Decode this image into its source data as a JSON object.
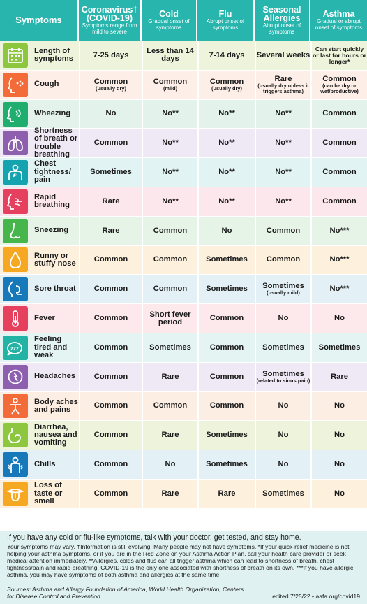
{
  "header": {
    "symptoms_label": "Symptoms",
    "columns": [
      {
        "title": "Coronavirus† (COVID-19)",
        "subtitle": "Symptoms range from mild to severe"
      },
      {
        "title": "Cold",
        "subtitle": "Gradual onset of symptoms"
      },
      {
        "title": "Flu",
        "subtitle": "Abrupt onset of symptoms"
      },
      {
        "title": "Seasonal Allergies",
        "subtitle": "Abrupt onset of symptoms"
      },
      {
        "title": "Asthma",
        "subtitle": "Gradual or abrupt onset of symptoms"
      }
    ]
  },
  "colors": {
    "header": "#27b5ad",
    "row_bgs": [
      "#eef4dc",
      "#fdeee8",
      "#e3f3ec",
      "#efe9f5",
      "#e2f3f4",
      "#fce7ec",
      "#e6f3e7",
      "#fdf0dd",
      "#e3f0f6",
      "#fde9eb",
      "#e4f4f2",
      "#efe9f5",
      "#fdeee3",
      "#eef4dc",
      "#e3f0f6",
      "#fdf0dd"
    ],
    "icon_bgs": [
      "#8dc63f",
      "#f26b38",
      "#1fae6e",
      "#8d5fae",
      "#16a3b0",
      "#e6405f",
      "#46b54c",
      "#f7a823",
      "#1779ba",
      "#e6405f",
      "#22b3a5",
      "#8d5fae",
      "#f26b38",
      "#8dc63f",
      "#1779ba",
      "#f7a823"
    ]
  },
  "chart_data": {
    "type": "table",
    "columns": [
      "Coronavirus† (COVID-19)",
      "Cold",
      "Flu",
      "Seasonal Allergies",
      "Asthma"
    ],
    "rows": [
      {
        "icon": "calendar-icon",
        "symptom": "Length of symptoms",
        "values": [
          {
            "main": "7-25 days"
          },
          {
            "main": "Less than 14 days"
          },
          {
            "main": "7-14 days"
          },
          {
            "main": "Several weeks"
          },
          {
            "main": "Can start quickly or last for hours or longer*",
            "small": true
          }
        ]
      },
      {
        "icon": "cough-icon",
        "symptom": "Cough",
        "values": [
          {
            "main": "Common",
            "note": "(usually dry)"
          },
          {
            "main": "Common",
            "note": "(mild)"
          },
          {
            "main": "Common",
            "note": "(usually dry)"
          },
          {
            "main": "Rare",
            "note": "(usually dry unless it triggers asthma)"
          },
          {
            "main": "Common",
            "note": "(can be dry or wet/productive)"
          }
        ]
      },
      {
        "icon": "wheezing-icon",
        "symptom": "Wheezing",
        "values": [
          {
            "main": "No"
          },
          {
            "main": "No**"
          },
          {
            "main": "No**"
          },
          {
            "main": "No**"
          },
          {
            "main": "Common"
          }
        ]
      },
      {
        "icon": "lungs-icon",
        "symptom": "Shortness of breath or trouble breathing",
        "values": [
          {
            "main": "Common"
          },
          {
            "main": "No**"
          },
          {
            "main": "No**"
          },
          {
            "main": "No**"
          },
          {
            "main": "Common"
          }
        ]
      },
      {
        "icon": "chest-icon",
        "symptom": "Chest tightness/ pain",
        "values": [
          {
            "main": "Sometimes"
          },
          {
            "main": "No**"
          },
          {
            "main": "No**"
          },
          {
            "main": "No**"
          },
          {
            "main": "Common"
          }
        ]
      },
      {
        "icon": "rapid-breathing-icon",
        "symptom": "Rapid breathing",
        "values": [
          {
            "main": "Rare"
          },
          {
            "main": "No**"
          },
          {
            "main": "No**"
          },
          {
            "main": "No**"
          },
          {
            "main": "Common"
          }
        ]
      },
      {
        "icon": "nose-icon",
        "symptom": "Sneezing",
        "values": [
          {
            "main": "Rare"
          },
          {
            "main": "Common"
          },
          {
            "main": "No"
          },
          {
            "main": "Common"
          },
          {
            "main": "No***"
          }
        ]
      },
      {
        "icon": "droplet-icon",
        "symptom": "Runny or stuffy nose",
        "values": [
          {
            "main": "Common"
          },
          {
            "main": "Common"
          },
          {
            "main": "Sometimes"
          },
          {
            "main": "Common"
          },
          {
            "main": "No***"
          }
        ]
      },
      {
        "icon": "sore-throat-icon",
        "symptom": "Sore throat",
        "values": [
          {
            "main": "Common"
          },
          {
            "main": "Common"
          },
          {
            "main": "Sometimes"
          },
          {
            "main": "Sometimes",
            "note": "(usually mild)"
          },
          {
            "main": "No***"
          }
        ]
      },
      {
        "icon": "thermometer-icon",
        "symptom": "Fever",
        "values": [
          {
            "main": "Common"
          },
          {
            "main": "Short fever period"
          },
          {
            "main": "Common"
          },
          {
            "main": "No"
          },
          {
            "main": "No"
          }
        ]
      },
      {
        "icon": "tired-icon",
        "symptom": "Feeling tired and weak",
        "values": [
          {
            "main": "Common"
          },
          {
            "main": "Sometimes"
          },
          {
            "main": "Common"
          },
          {
            "main": "Sometimes"
          },
          {
            "main": "Sometimes"
          }
        ]
      },
      {
        "icon": "headache-icon",
        "symptom": "Headaches",
        "values": [
          {
            "main": "Common"
          },
          {
            "main": "Rare"
          },
          {
            "main": "Common"
          },
          {
            "main": "Sometimes",
            "note": "(related to sinus pain)"
          },
          {
            "main": "Rare"
          }
        ]
      },
      {
        "icon": "body-aches-icon",
        "symptom": "Body aches and pains",
        "values": [
          {
            "main": "Common"
          },
          {
            "main": "Common"
          },
          {
            "main": "Common"
          },
          {
            "main": "No"
          },
          {
            "main": "No"
          }
        ]
      },
      {
        "icon": "stomach-icon",
        "symptom": "Diarrhea, nausea and vomiting",
        "values": [
          {
            "main": "Common"
          },
          {
            "main": "Rare"
          },
          {
            "main": "Sometimes"
          },
          {
            "main": "No"
          },
          {
            "main": "No"
          }
        ]
      },
      {
        "icon": "chills-icon",
        "symptom": "Chills",
        "values": [
          {
            "main": "Common"
          },
          {
            "main": "No"
          },
          {
            "main": "Sometimes"
          },
          {
            "main": "No"
          },
          {
            "main": "No"
          }
        ]
      },
      {
        "icon": "tongue-icon",
        "symptom": "Loss of taste or smell",
        "values": [
          {
            "main": "Common"
          },
          {
            "main": "Rare"
          },
          {
            "main": "Rare"
          },
          {
            "main": "Sometimes"
          },
          {
            "main": "No"
          }
        ]
      }
    ]
  },
  "footer": {
    "lead": "If you have any cold or flu-like symptoms, talk with your doctor, get tested, and stay home.",
    "body": "Your symptoms may vary. †Information is still evolving. Many people may not have symptoms. *If your quick-relief medicine is not helping your asthma symptoms, or if you are in the Red Zone on your Asthma Action Plan, call your health care provider or seek medical attention immediately. **Allergies, colds and flus can all trigger asthma which can lead to shortness of breath, chest tightness/pain and rapid breathing. COVID-19 is the only one associated with shortness of breath on its own. ***If you have allergic asthma, you may have symptoms of both asthma and allergies at the same time.",
    "sources": "Sources: Asthma and Allergy Foundation of America, World Health Organization, Centers for Disease Control and Prevention.",
    "edited": "edited 7/25/22 • aafa.org/covid19"
  }
}
